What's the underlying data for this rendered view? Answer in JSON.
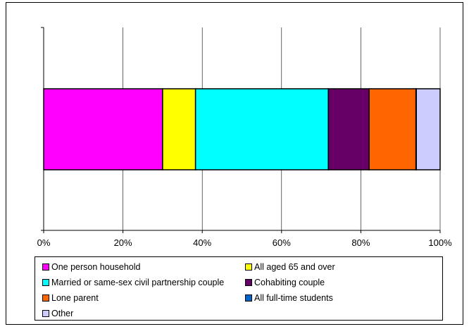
{
  "chart_data": {
    "type": "bar",
    "orientation": "horizontal",
    "stacked": true,
    "percent_stacked": true,
    "categories": [
      ""
    ],
    "series": [
      {
        "name": "One person household",
        "values": [
          30.0
        ],
        "color": "#FF00FF"
      },
      {
        "name": "All aged 65 and over",
        "values": [
          8.3
        ],
        "color": "#FFFF00"
      },
      {
        "name": "Married or same-sex civil partnership couple",
        "values": [
          33.5
        ],
        "color": "#00FFFF"
      },
      {
        "name": "Cohabiting couple",
        "values": [
          10.3
        ],
        "color": "#660066"
      },
      {
        "name": "Lone parent",
        "values": [
          11.8
        ],
        "color": "#FF6600"
      },
      {
        "name": "All full-time students",
        "values": [
          0.1
        ],
        "color": "#0066CC"
      },
      {
        "name": "Other",
        "values": [
          6.0
        ],
        "color": "#CCCCFF"
      }
    ],
    "xlim": [
      0,
      100
    ],
    "x_ticks": [
      {
        "value": 0,
        "label": "0%"
      },
      {
        "value": 20,
        "label": "20%"
      },
      {
        "value": 40,
        "label": "40%"
      },
      {
        "value": 60,
        "label": "60%"
      },
      {
        "value": 80,
        "label": "80%"
      },
      {
        "value": 100,
        "label": "100%"
      }
    ],
    "grid": "vertical",
    "legend_position": "bottom",
    "title": "",
    "xlabel": "",
    "ylabel": ""
  }
}
